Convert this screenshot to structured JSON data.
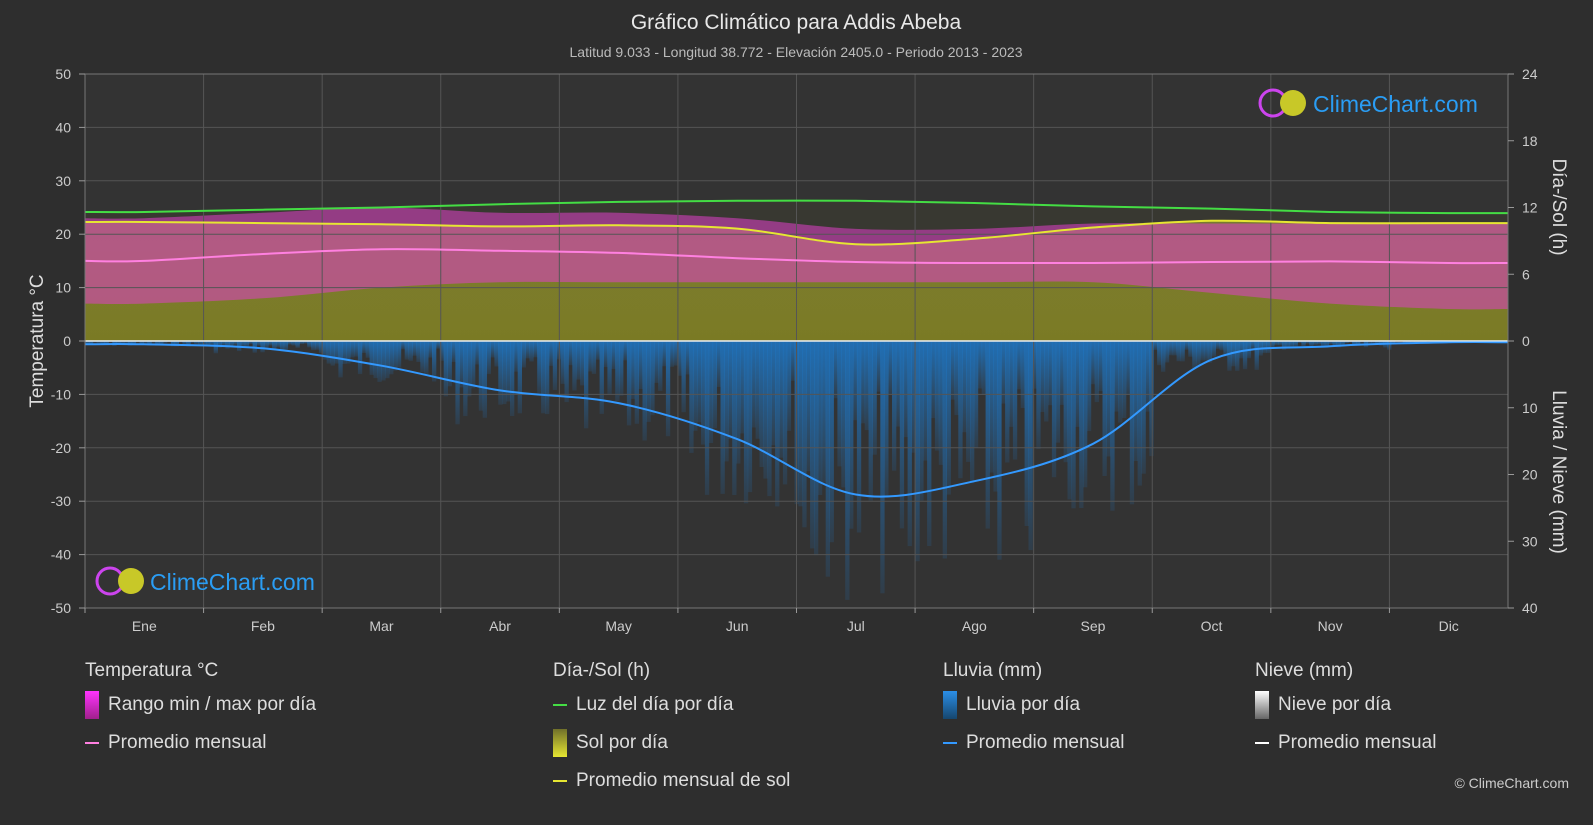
{
  "title": "Gráfico Climático para Addis Abeba",
  "subtitle": "Latitud 9.033 - Longitud 38.772 - Elevación 2405.0 - Periodo 2013 - 2023",
  "brand": "ClimeChart.com",
  "copyright": "© ClimeChart.com",
  "colors": {
    "background": "#2e2e2e",
    "grid": "#555555",
    "temp_range": "#e040c8",
    "temp_avg": "#ff80e0",
    "daylight": "#44dd44",
    "sunshine_fill": "#9c9c28",
    "sunshine_avg": "#e6e632",
    "rain": "#1e78c8",
    "rain_avg": "#3399ff",
    "snow_avg": "#ffffff",
    "brand": "#2a9df4"
  },
  "chart_data": {
    "type": "line",
    "categories": [
      "Ene",
      "Feb",
      "Mar",
      "Abr",
      "May",
      "Jun",
      "Jul",
      "Ago",
      "Sep",
      "Oct",
      "Nov",
      "Dic"
    ],
    "y_left": {
      "label": "Temperatura °C",
      "range": [
        -50,
        50
      ],
      "ticks": [
        "50",
        "40",
        "30",
        "20",
        "10",
        "0",
        "-10",
        "-20",
        "-30",
        "-40",
        "-50"
      ]
    },
    "y_right_top": {
      "label": "Día-/Sol (h)",
      "range": [
        0,
        24
      ],
      "ticks": [
        "24",
        "18",
        "12",
        "6",
        "0"
      ]
    },
    "y_right_bottom": {
      "label": "Lluvia / Nieve (mm)",
      "range": [
        0,
        40
      ],
      "ticks": [
        "0",
        "10",
        "20",
        "30",
        "40"
      ]
    },
    "grid": true,
    "series": [
      {
        "name": "Luz del día por día",
        "axis": "hours",
        "values": [
          11.6,
          11.8,
          12.0,
          12.3,
          12.5,
          12.6,
          12.6,
          12.4,
          12.1,
          11.9,
          11.6,
          11.5
        ]
      },
      {
        "name": "Promedio mensual de sol",
        "axis": "hours",
        "values": [
          10.7,
          10.6,
          10.5,
          10.3,
          10.4,
          10.1,
          8.7,
          9.2,
          10.2,
          10.8,
          10.6,
          10.6
        ]
      },
      {
        "name": "Promedio mensual",
        "axis": "temperature",
        "values": [
          15.0,
          16.3,
          17.2,
          16.9,
          16.5,
          15.5,
          14.8,
          14.6,
          14.6,
          14.8,
          14.9,
          14.6
        ]
      },
      {
        "name": "Promedio mensual",
        "axis": "rain_mm",
        "values": [
          0.5,
          1.1,
          3.7,
          7.4,
          9.3,
          14.7,
          23.0,
          21.0,
          15.4,
          2.8,
          0.8,
          0.2
        ]
      }
    ],
    "temp_range_band": {
      "min": [
        7,
        8,
        10,
        11,
        11,
        11,
        11,
        11,
        11,
        9,
        7,
        6
      ],
      "max": [
        23,
        24,
        25,
        24,
        24,
        23,
        21,
        21,
        22,
        22,
        22,
        22
      ]
    }
  },
  "legend": {
    "temperature": {
      "heading": "Temperatura °C",
      "items": [
        "Rango min / max por día",
        "Promedio mensual"
      ]
    },
    "daylight": {
      "heading": "Día-/Sol (h)",
      "items": [
        "Luz del día por día",
        "Sol por día",
        "Promedio mensual de sol"
      ]
    },
    "rain": {
      "heading": "Lluvia (mm)",
      "items": [
        "Lluvia por día",
        "Promedio mensual"
      ]
    },
    "snow": {
      "heading": "Nieve (mm)",
      "items": [
        "Nieve por día",
        "Promedio mensual"
      ]
    }
  }
}
